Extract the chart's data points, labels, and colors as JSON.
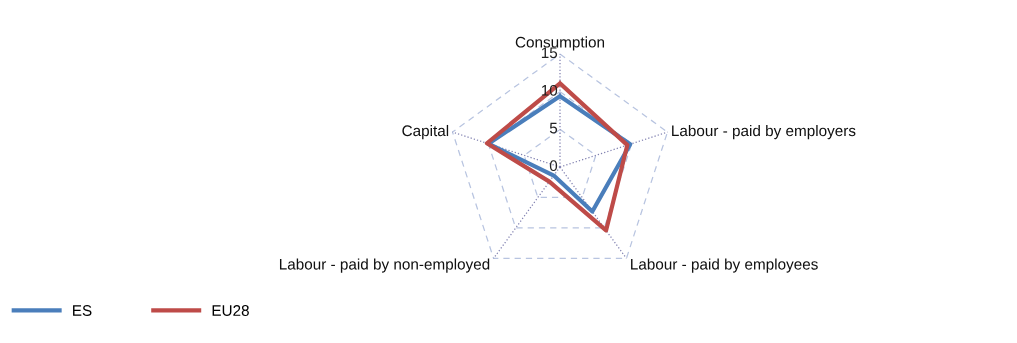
{
  "chart_data": {
    "type": "radar",
    "categories": [
      "Consumption",
      "Labour - paid by employers",
      "Labour - paid by employees",
      "Labour - paid by non-employed",
      "Capital"
    ],
    "ylim": [
      0,
      15
    ],
    "yticks": [
      0,
      5,
      10,
      15
    ],
    "grid": true,
    "legend": "bottom left",
    "line_style": "solid",
    "marker": "none",
    "series": [
      {
        "name": "ES",
        "color": "#4a7ebb",
        "values": [
          9.4,
          9.8,
          7.3,
          1.4,
          10.0
        ]
      },
      {
        "name": "EU28",
        "color": "#be4b48",
        "values": [
          11.1,
          9.4,
          10.4,
          2.4,
          10.2
        ]
      }
    ]
  }
}
